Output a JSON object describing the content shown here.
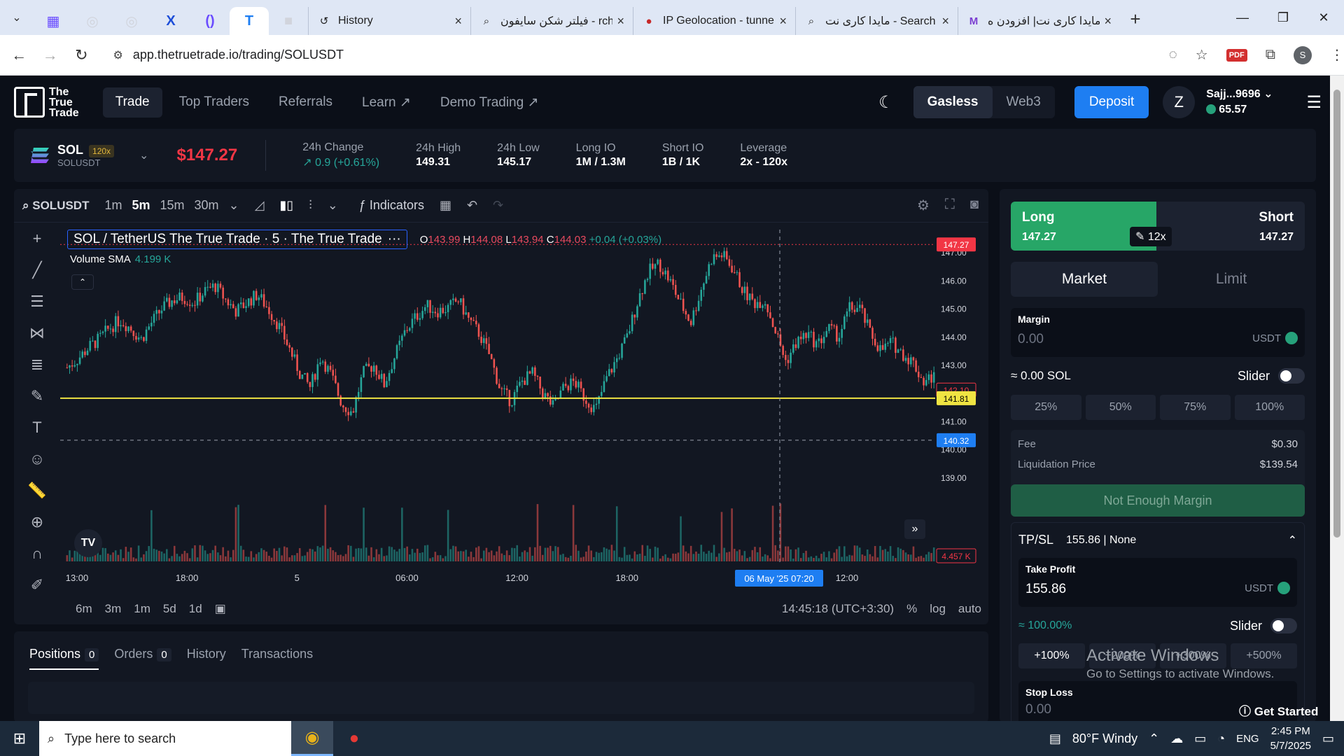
{
  "browser": {
    "tabs": [
      {
        "title": "History",
        "icon": "history-icon"
      },
      {
        "title": "فیلتر شکن سایفون - rch",
        "icon": "search-icon"
      },
      {
        "title": "IP Geolocation - tunne",
        "icon": "psiphon-icon"
      },
      {
        "title": "مایدا کاری نت - Search",
        "icon": "search-icon"
      },
      {
        "title": "مایدا کاری نت| افزودن ه",
        "icon": "m-icon"
      }
    ],
    "url": "app.thetruetrade.io/trading/SOLUSDT"
  },
  "header": {
    "logo": [
      "The",
      "True",
      "Trade"
    ],
    "nav": [
      "Trade",
      "Top Traders",
      "Referrals",
      "Learn",
      "Demo Trading"
    ],
    "mode": [
      "Gasless",
      "Web3"
    ],
    "deposit": "Deposit",
    "avatar": "Z",
    "account": "Sajj...9696",
    "balance": "65.57"
  },
  "ticker": {
    "symbol": "SOL",
    "leverage_badge": "120x",
    "pair": "SOLUSDT",
    "price": "$147.27",
    "stats": [
      {
        "label": "24h Change",
        "value": "↗ 0.9 (+0.61%)"
      },
      {
        "label": "24h High",
        "value": "149.31"
      },
      {
        "label": "24h Low",
        "value": "145.17"
      },
      {
        "label": "Long IO",
        "value": "1M / 1.3M"
      },
      {
        "label": "Short IO",
        "value": "1B / 1K"
      },
      {
        "label": "Leverage",
        "value": "2x - 120x"
      }
    ]
  },
  "chart_toolbar": {
    "symbol": "SOLUSDT",
    "timeframes": [
      "1m",
      "5m",
      "15m",
      "30m"
    ],
    "indicators": "Indicators"
  },
  "chart_legend": {
    "title": "SOL / TetherUS The True Trade · 5 · The True Trade",
    "o": "143.99",
    "h": "144.08",
    "l": "143.94",
    "c": "144.03",
    "chg": "+0.04 (+0.03%)",
    "volume_label": "Volume SMA",
    "volume_value": "4.199 K"
  },
  "chart_bottom": {
    "ranges": [
      "6m",
      "3m",
      "1m",
      "5d",
      "1d"
    ],
    "time": "14:45:18 (UTC+3:30)",
    "opts": [
      "%",
      "log",
      "auto"
    ]
  },
  "chart_data": {
    "type": "candlestick",
    "title": "SOL / TetherUS The True Trade · 5 · The True Trade",
    "y_ticks": [
      "147.00",
      "146.00",
      "145.00",
      "144.00",
      "143.00",
      "142.00",
      "141.00",
      "140.00",
      "139.00"
    ],
    "x_ticks": [
      "13:00",
      "18:00",
      "5",
      "06:00",
      "12:00",
      "18:00",
      "6",
      "12:00"
    ],
    "ylim": [
      138.8,
      147.3
    ],
    "close_series": [
      142.9,
      143.2,
      143.6,
      143.9,
      144.3,
      144.6,
      144.3,
      143.9,
      144.5,
      145.0,
      145.3,
      145.4,
      145.2,
      145.6,
      145.8,
      145.3,
      144.9,
      145.2,
      145.5,
      145.0,
      144.4,
      143.6,
      142.7,
      142.2,
      143.3,
      142.6,
      141.6,
      141.3,
      142.7,
      143.0,
      142.3,
      143.3,
      144.2,
      144.7,
      145.1,
      144.9,
      145.0,
      145.3,
      144.6,
      144.1,
      143.3,
      142.1,
      141.7,
      142.4,
      142.7,
      142.0,
      141.5,
      142.2,
      142.4,
      141.8,
      141.4,
      142.5,
      143.2,
      144.0,
      145.3,
      146.3,
      146.6,
      146.0,
      145.2,
      144.5,
      145.7,
      146.8,
      146.9,
      146.4,
      145.6,
      145.2,
      145.3,
      144.2,
      143.1,
      143.8,
      144.1,
      143.7,
      144.3,
      144.0,
      145.0,
      145.0,
      144.1,
      143.5,
      143.8,
      143.4,
      143.1,
      142.4,
      142.6
    ],
    "highlights": [
      {
        "label": "current",
        "value": "147.27"
      },
      {
        "label": "low marker",
        "value": "142.10"
      },
      {
        "label": "horizontal line",
        "value": "141.81"
      },
      {
        "label": "crosshair",
        "value": "140.32"
      },
      {
        "label": "volume",
        "value": "4.457 K"
      }
    ],
    "crosshair_time": "06 May '25  07:20",
    "grid": false
  },
  "positions": {
    "tabs": [
      {
        "label": "Positions",
        "count": "0"
      },
      {
        "label": "Orders",
        "count": "0"
      },
      {
        "label": "History"
      },
      {
        "label": "Transactions"
      }
    ]
  },
  "order": {
    "long_label": "Long",
    "long_price": "147.27",
    "short_label": "Short",
    "short_price": "147.27",
    "leverage": "12x",
    "types": [
      "Market",
      "Limit"
    ],
    "margin_label": "Margin",
    "margin_placeholder": "0.00",
    "currency": "USDT",
    "approx": "≈ 0.00 SOL",
    "slider_label": "Slider",
    "pcts": [
      "25%",
      "50%",
      "75%",
      "100%"
    ],
    "fee_label": "Fee",
    "fee": "$0.30",
    "liq_label": "Liquidation Price",
    "liq": "$139.54",
    "cta": "Not Enough Margin",
    "tpsl_label": "TP/SL",
    "tpsl_summary": "155.86 | None",
    "tp_label": "Take Profit",
    "tp_value": "155.86",
    "tp_pct": "≈ 100.00%",
    "tp_pcts": [
      "+100%",
      "+200%",
      "+300%",
      "+500%"
    ],
    "sl_label": "Stop Loss",
    "sl_value": "0.00"
  },
  "overlay": {
    "activate_title": "Activate Windows",
    "activate_sub": "Go to Settings to activate Windows.",
    "get_started": "Get Started"
  },
  "taskbar": {
    "search_placeholder": "Type here to search",
    "weather": "80°F  Windy",
    "lang": "ENG",
    "time": "2:45 PM",
    "date": "5/7/2025"
  }
}
